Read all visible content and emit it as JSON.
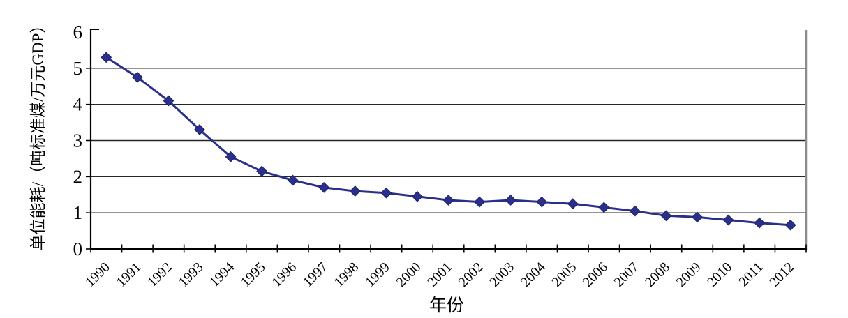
{
  "chart_data": {
    "type": "line",
    "title": "",
    "xlabel": "年份",
    "ylabel": "单位能耗/（吨标准煤/万元GDP）",
    "categories": [
      "1990",
      "1991",
      "1992",
      "1993",
      "1994",
      "1995",
      "1996",
      "1997",
      "1998",
      "1999",
      "2000",
      "2001",
      "2002",
      "2003",
      "2004",
      "2005",
      "2006",
      "2007",
      "2008",
      "2009",
      "2010",
      "2011",
      "2012"
    ],
    "series": [
      {
        "name": "单位能耗",
        "values": [
          5.3,
          4.75,
          4.1,
          3.3,
          2.55,
          2.15,
          1.9,
          1.7,
          1.6,
          1.55,
          1.45,
          1.35,
          1.3,
          1.35,
          1.3,
          1.25,
          1.15,
          1.05,
          0.92,
          0.88,
          0.8,
          0.72,
          0.66
        ]
      }
    ],
    "ylim": [
      0,
      6
    ],
    "yticks": [
      0,
      1,
      2,
      3,
      4,
      5,
      6
    ],
    "grid": "horizontal",
    "legend_position": "none",
    "marker": "diamond",
    "x_tick_rotation_deg": -45,
    "colors": {
      "line": "#2b2f8c",
      "marker_fill": "#2b2f8c",
      "marker_stroke": "#1e2166",
      "gridline": "#262626",
      "axis": "#000000",
      "plot_border_right": "#8c8c8c",
      "text": "#000000",
      "background": "#ffffff"
    }
  }
}
